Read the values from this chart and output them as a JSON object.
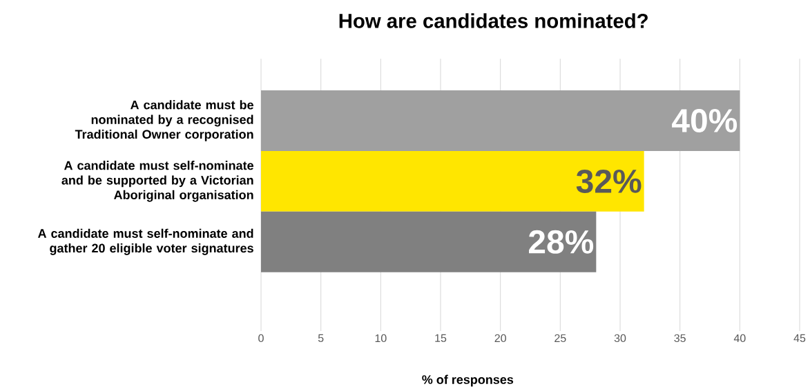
{
  "chart_data": {
    "type": "bar",
    "orientation": "horizontal",
    "title": "How are candidates nominated?",
    "xlabel": "% of responses",
    "categories": [
      "A candidate must be nominated by a recognised Traditional Owner corporation",
      "A candidate must self-nominate and be supported by a Victorian Aboriginal organisation",
      "A candidate must self-nominate and gather 20 eligible voter signatures"
    ],
    "values": [
      40,
      32,
      28
    ],
    "colors": [
      "#a0a0a0",
      "#ffe600",
      "#808080"
    ],
    "value_labels": [
      "40%",
      "32%",
      "28%"
    ],
    "xlim": [
      0,
      45
    ],
    "xticks": [
      0,
      5,
      10,
      15,
      20,
      25,
      30,
      35,
      40,
      45
    ],
    "grid": "x"
  }
}
